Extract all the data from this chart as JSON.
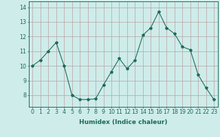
{
  "x": [
    0,
    1,
    2,
    3,
    4,
    5,
    6,
    7,
    8,
    9,
    10,
    11,
    12,
    13,
    14,
    15,
    16,
    17,
    18,
    19,
    20,
    21,
    22,
    23
  ],
  "y": [
    10.0,
    10.4,
    11.0,
    11.6,
    10.0,
    8.0,
    7.7,
    7.7,
    7.75,
    8.7,
    9.6,
    10.5,
    9.8,
    10.4,
    12.1,
    12.6,
    13.7,
    12.6,
    12.2,
    11.3,
    11.1,
    9.4,
    8.5,
    7.7
  ],
  "xlim": [
    -0.5,
    23.5
  ],
  "ylim": [
    7.2,
    14.4
  ],
  "yticks": [
    8,
    9,
    10,
    11,
    12,
    13,
    14
  ],
  "xticks": [
    0,
    1,
    2,
    3,
    4,
    5,
    6,
    7,
    8,
    9,
    10,
    11,
    12,
    13,
    14,
    15,
    16,
    17,
    18,
    19,
    20,
    21,
    22,
    23
  ],
  "xlabel": "Humidex (Indice chaleur)",
  "line_color": "#1a6b5a",
  "marker": "*",
  "bg_color": "#ceecea",
  "grid_color": "#b8a0a0",
  "axis_color": "#1a6b5a",
  "tick_color": "#1a6b5a",
  "label_color": "#1a6b5a",
  "xlabel_fontsize": 6.5,
  "tick_fontsize": 5.8
}
